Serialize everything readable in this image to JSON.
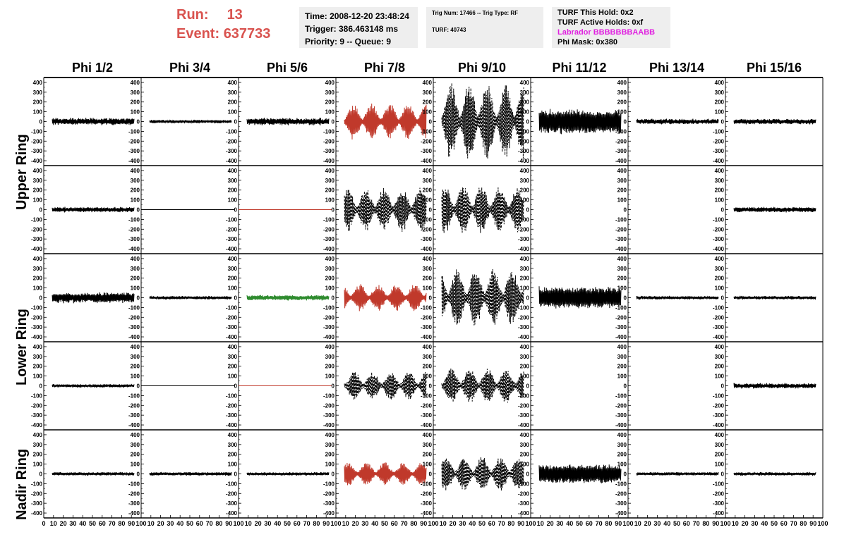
{
  "run": {
    "run_label": "Run:",
    "run_value": "13",
    "event_label": "Event:",
    "event_value": "637733"
  },
  "info1": {
    "time": "Time: 2008-12-20 23:48:24",
    "trigger": "Trigger: 386.463148 ms",
    "priority": "Priority: 9 -- Queue: 9"
  },
  "info2": {
    "trig": "Trig Num: 17466 -- Trig Type: RF",
    "turf": "TURF: 40743"
  },
  "info3": {
    "hold": "TURF This Hold: 0x2",
    "active": "TURF Active Holds: 0xf",
    "labrador": "Labrador BBBBBBBAABB",
    "mask": "Phi Mask: 0x380"
  },
  "columns": [
    "Phi 1/2",
    "Phi 3/4",
    "Phi 5/6",
    "Phi 7/8",
    "Phi 9/10",
    "Phi 11/12",
    "Phi 13/14",
    "Phi 15/16"
  ],
  "rings": {
    "upper": "Upper Ring",
    "lower": "Lower Ring",
    "nadir": "Nadir Ring"
  },
  "y_ticks": [
    "400",
    "300",
    "200",
    "100",
    "0",
    "-100",
    "-200",
    "-300",
    "-400"
  ],
  "x_ticks": [
    "0",
    "10",
    "20",
    "30",
    "40",
    "50",
    "60",
    "70",
    "80",
    "90",
    "100"
  ],
  "colors": {
    "red": "#c0392b",
    "green": "#2e8b2e",
    "black": "#000000",
    "label_red": "#d9534f",
    "magenta": "#e020e0",
    "box_bg": "#eeeeee"
  },
  "chart_data": {
    "type": "line",
    "xlim": [
      0,
      100
    ],
    "ylim": [
      -450,
      450
    ],
    "rows": [
      {
        "ring": "Upper",
        "panels": [
          {
            "col": "Phi 1/2",
            "style": "solid",
            "color": "black",
            "amplitude": 40,
            "shape": "noise"
          },
          {
            "col": "Phi 3/4",
            "style": "solid",
            "color": "black",
            "amplitude": 20,
            "shape": "noise"
          },
          {
            "col": "Phi 5/6",
            "style": "solid",
            "color": "black",
            "amplitude": 40,
            "shape": "noise"
          },
          {
            "col": "Phi 7/8",
            "style": "solid",
            "color": "red",
            "amplitude": 190,
            "shape": "packets"
          },
          {
            "col": "Phi 9/10",
            "style": "dashed",
            "color": "black",
            "amplitude": 400,
            "shape": "packets"
          },
          {
            "col": "Phi 11/12",
            "style": "solid",
            "color": "black",
            "amplitude": 130,
            "shape": "dense"
          },
          {
            "col": "Phi 13/14",
            "style": "solid",
            "color": "black",
            "amplitude": 30,
            "shape": "noise"
          },
          {
            "col": "Phi 15/16",
            "style": "solid",
            "color": "black",
            "amplitude": 30,
            "shape": "noise"
          }
        ]
      },
      {
        "ring": "Upper",
        "panels": [
          {
            "col": "Phi 1/2",
            "style": "solid",
            "color": "black",
            "amplitude": 30,
            "shape": "noise"
          },
          {
            "col": "Phi 3/4",
            "style": "solid",
            "color": "black",
            "amplitude": 0,
            "shape": "flat"
          },
          {
            "col": "Phi 5/6",
            "style": "solid",
            "color": "red",
            "amplitude": 0,
            "shape": "flat"
          },
          {
            "col": "Phi 7/8",
            "style": "dashed",
            "color": "black",
            "amplitude": 230,
            "shape": "packets"
          },
          {
            "col": "Phi 9/10",
            "style": "dashed",
            "color": "black",
            "amplitude": 250,
            "shape": "packets"
          },
          {
            "col": "Phi 11/12",
            "style": "solid",
            "color": "black",
            "amplitude": 0,
            "shape": "none"
          },
          {
            "col": "Phi 13/14",
            "style": "solid",
            "color": "black",
            "amplitude": 0,
            "shape": "none"
          },
          {
            "col": "Phi 15/16",
            "style": "solid",
            "color": "black",
            "amplitude": 30,
            "shape": "noise"
          }
        ]
      },
      {
        "ring": "Lower",
        "panels": [
          {
            "col": "Phi 1/2",
            "style": "solid",
            "color": "black",
            "amplitude": 60,
            "shape": "noise"
          },
          {
            "col": "Phi 3/4",
            "style": "solid",
            "color": "black",
            "amplitude": 20,
            "shape": "noise"
          },
          {
            "col": "Phi 5/6",
            "style": "solid",
            "color": "green",
            "amplitude": 30,
            "shape": "noise"
          },
          {
            "col": "Phi 7/8",
            "style": "solid",
            "color": "red",
            "amplitude": 140,
            "shape": "packets"
          },
          {
            "col": "Phi 9/10",
            "style": "dashed",
            "color": "black",
            "amplitude": 300,
            "shape": "packets"
          },
          {
            "col": "Phi 11/12",
            "style": "solid",
            "color": "black",
            "amplitude": 120,
            "shape": "dense"
          },
          {
            "col": "Phi 13/14",
            "style": "solid",
            "color": "black",
            "amplitude": 20,
            "shape": "noise"
          },
          {
            "col": "Phi 15/16",
            "style": "solid",
            "color": "black",
            "amplitude": 20,
            "shape": "noise"
          }
        ]
      },
      {
        "ring": "Lower",
        "panels": [
          {
            "col": "Phi 1/2",
            "style": "solid",
            "color": "black",
            "amplitude": 20,
            "shape": "noise"
          },
          {
            "col": "Phi 3/4",
            "style": "solid",
            "color": "black",
            "amplitude": 0,
            "shape": "flat"
          },
          {
            "col": "Phi 5/6",
            "style": "solid",
            "color": "red",
            "amplitude": 0,
            "shape": "flat"
          },
          {
            "col": "Phi 7/8",
            "style": "dashed",
            "color": "black",
            "amplitude": 150,
            "shape": "packets"
          },
          {
            "col": "Phi 9/10",
            "style": "dashed",
            "color": "black",
            "amplitude": 180,
            "shape": "packets"
          },
          {
            "col": "Phi 11/12",
            "style": "solid",
            "color": "black",
            "amplitude": 0,
            "shape": "none"
          },
          {
            "col": "Phi 13/14",
            "style": "solid",
            "color": "black",
            "amplitude": 0,
            "shape": "none"
          },
          {
            "col": "Phi 15/16",
            "style": "solid",
            "color": "black",
            "amplitude": 30,
            "shape": "noise"
          }
        ]
      },
      {
        "ring": "Nadir",
        "panels": [
          {
            "col": "Phi 1/2",
            "style": "solid",
            "color": "black",
            "amplitude": 20,
            "shape": "noise"
          },
          {
            "col": "Phi 3/4",
            "style": "solid",
            "color": "black",
            "amplitude": 20,
            "shape": "noise"
          },
          {
            "col": "Phi 5/6",
            "style": "solid",
            "color": "black",
            "amplitude": 20,
            "shape": "noise"
          },
          {
            "col": "Phi 7/8",
            "style": "solid",
            "color": "red",
            "amplitude": 120,
            "shape": "packets"
          },
          {
            "col": "Phi 9/10",
            "style": "dashed",
            "color": "black",
            "amplitude": 180,
            "shape": "packets"
          },
          {
            "col": "Phi 11/12",
            "style": "solid",
            "color": "black",
            "amplitude": 100,
            "shape": "dense"
          },
          {
            "col": "Phi 13/14",
            "style": "solid",
            "color": "black",
            "amplitude": 20,
            "shape": "noise"
          },
          {
            "col": "Phi 15/16",
            "style": "solid",
            "color": "black",
            "amplitude": 20,
            "shape": "noise"
          }
        ]
      }
    ]
  }
}
